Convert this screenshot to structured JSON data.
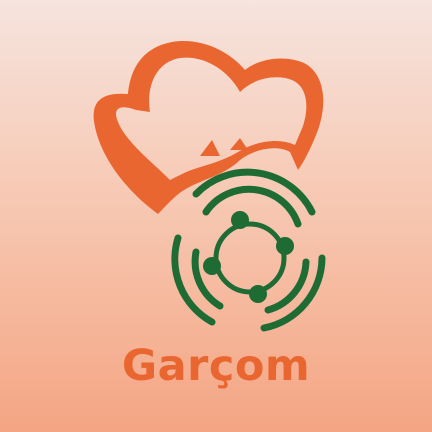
{
  "app": {
    "name": "Garçom"
  },
  "colors": {
    "background_top": "#f6e4de",
    "background_bottom": "#f4a583",
    "brand_orange": "#ea6630",
    "brand_green": "#1e6b34"
  },
  "logo": {
    "hat_icon": "chef-hat-icon",
    "network_icon": "connected-circle-icon"
  }
}
